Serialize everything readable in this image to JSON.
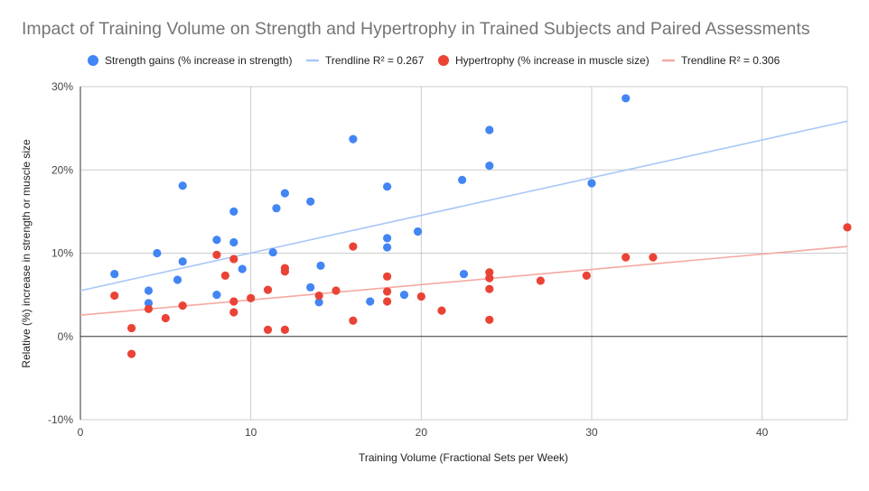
{
  "chart_data": {
    "type": "scatter",
    "title": "Impact of Training Volume on Strength and Hypertrophy in Trained Subjects and Paired Assessments",
    "xlabel": "Training Volume (Fractional Sets per Week)",
    "ylabel": "Relative (%) increase in strength or muscle size",
    "xlim": [
      0,
      45
    ],
    "ylim": [
      -10,
      30
    ],
    "x_ticks": [
      0,
      10,
      20,
      30,
      40
    ],
    "x_tick_labels": [
      "0",
      "10",
      "20",
      "30",
      "40"
    ],
    "y_ticks": [
      -10,
      0,
      10,
      20,
      30
    ],
    "y_tick_labels": [
      "-10%",
      "0%",
      "10%",
      "20%",
      "30%"
    ],
    "grid": true,
    "legend_position": "top",
    "series": [
      {
        "name": "Strength gains (% increase in strength)",
        "color": "#4285f4",
        "points": [
          [
            2,
            7.5
          ],
          [
            4,
            5.5
          ],
          [
            4,
            4.0
          ],
          [
            4.5,
            10.0
          ],
          [
            5.7,
            6.8
          ],
          [
            6,
            18.1
          ],
          [
            6,
            9.0
          ],
          [
            8,
            11.6
          ],
          [
            8,
            5.0
          ],
          [
            9,
            15.0
          ],
          [
            9,
            11.3
          ],
          [
            9.5,
            8.1
          ],
          [
            11.3,
            10.1
          ],
          [
            11.5,
            15.4
          ],
          [
            12,
            17.2
          ],
          [
            13.5,
            16.2
          ],
          [
            13.5,
            5.9
          ],
          [
            14,
            4.1
          ],
          [
            14.1,
            8.5
          ],
          [
            16,
            23.7
          ],
          [
            17,
            4.2
          ],
          [
            18,
            18.0
          ],
          [
            18,
            11.8
          ],
          [
            18,
            10.7
          ],
          [
            19,
            5.0
          ],
          [
            19.8,
            12.6
          ],
          [
            22.4,
            18.8
          ],
          [
            22.5,
            7.5
          ],
          [
            24,
            24.8
          ],
          [
            24,
            20.5
          ],
          [
            30,
            18.4
          ],
          [
            32,
            28.6
          ]
        ]
      },
      {
        "name": "Hypertrophy (% increase in muscle size)",
        "color": "#ea4335",
        "points": [
          [
            2,
            4.9
          ],
          [
            3,
            1.0
          ],
          [
            3,
            -2.1
          ],
          [
            4,
            3.3
          ],
          [
            5,
            2.2
          ],
          [
            6,
            3.7
          ],
          [
            8,
            9.8
          ],
          [
            8.5,
            7.3
          ],
          [
            9,
            9.3
          ],
          [
            9,
            4.2
          ],
          [
            9,
            2.9
          ],
          [
            10,
            4.6
          ],
          [
            11,
            5.6
          ],
          [
            11,
            0.8
          ],
          [
            12,
            8.2
          ],
          [
            12,
            7.8
          ],
          [
            12,
            0.8
          ],
          [
            14,
            4.9
          ],
          [
            15,
            5.5
          ],
          [
            16,
            10.8
          ],
          [
            16,
            1.9
          ],
          [
            18,
            7.2
          ],
          [
            18,
            5.4
          ],
          [
            18,
            4.2
          ],
          [
            20,
            4.8
          ],
          [
            21.2,
            3.1
          ],
          [
            24,
            7.7
          ],
          [
            24,
            7.0
          ],
          [
            24,
            5.7
          ],
          [
            24,
            2.0
          ],
          [
            27,
            6.7
          ],
          [
            29.7,
            7.3
          ],
          [
            32,
            9.5
          ],
          [
            33.6,
            9.5
          ],
          [
            45,
            13.1
          ]
        ]
      }
    ],
    "trendlines": [
      {
        "name": "Trendline R² = 0.267",
        "color": "#a7c7f7",
        "intercept": 5.5,
        "slope": 0.4523
      },
      {
        "name": "Trendline R² = 0.306",
        "color": "#f4a9a0",
        "intercept": 2.55,
        "slope": 0.1834
      }
    ],
    "legend_order": [
      "series.0",
      "trendlines.0",
      "series.1",
      "trendlines.1"
    ]
  }
}
